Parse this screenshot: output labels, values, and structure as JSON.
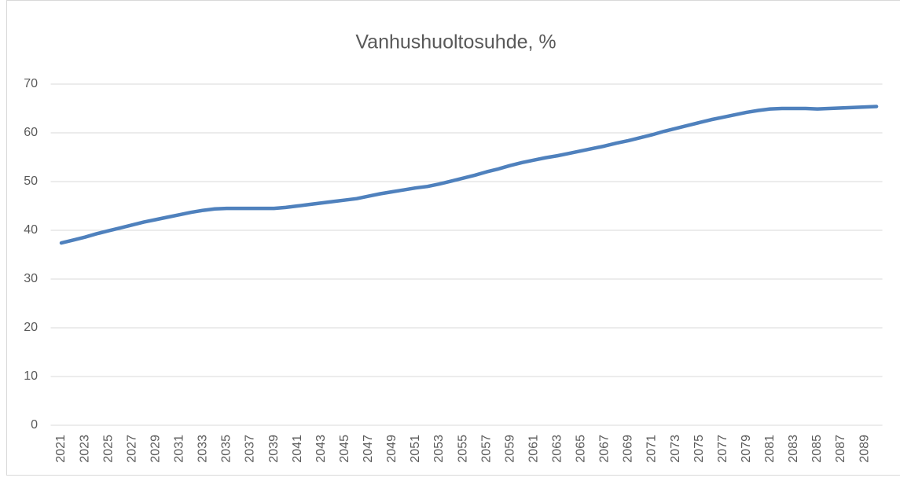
{
  "chart_data": {
    "type": "line",
    "title": "Vanhushuoltosuhde, %",
    "categories": [
      "2021",
      null,
      "2023",
      null,
      "2025",
      null,
      "2027",
      null,
      "2029",
      null,
      "2031",
      null,
      "2033",
      null,
      "2035",
      null,
      "2037",
      null,
      "2039",
      null,
      "2041",
      null,
      "2043",
      null,
      "2045",
      null,
      "2047",
      null,
      "2049",
      null,
      "2051",
      null,
      "2053",
      null,
      "2055",
      null,
      "2057",
      null,
      "2059",
      null,
      "2061",
      null,
      "2063",
      null,
      "2065",
      null,
      "2067",
      null,
      "2069",
      null,
      "2071",
      null,
      "2073",
      null,
      "2075",
      null,
      "2077",
      null,
      "2079",
      null,
      "2081",
      null,
      "2083",
      null,
      "2085",
      null,
      "2087",
      null,
      "2089",
      null
    ],
    "series": [
      {
        "color": "#4f81bd",
        "values": [
          37.4,
          38.0,
          38.6,
          39.3,
          39.9,
          40.5,
          41.1,
          41.7,
          42.2,
          42.7,
          43.2,
          43.7,
          44.1,
          44.4,
          44.5,
          44.5,
          44.5,
          44.5,
          44.5,
          44.7,
          45.0,
          45.3,
          45.6,
          45.9,
          46.2,
          46.5,
          47.0,
          47.5,
          47.9,
          48.3,
          48.7,
          49.0,
          49.5,
          50.1,
          50.7,
          51.3,
          52.0,
          52.6,
          53.3,
          53.9,
          54.4,
          54.9,
          55.3,
          55.8,
          56.3,
          56.8,
          57.3,
          57.9,
          58.4,
          59.0,
          59.6,
          60.3,
          60.9,
          61.5,
          62.1,
          62.7,
          63.2,
          63.7,
          64.2,
          64.6,
          64.9,
          65.0,
          65.0,
          65.0,
          64.9,
          65.0,
          65.1,
          65.2,
          65.3,
          65.4
        ]
      }
    ],
    "ylim": [
      0,
      70
    ],
    "yticks": [
      0,
      10,
      20,
      30,
      40,
      50,
      60,
      70
    ],
    "grid": true
  }
}
